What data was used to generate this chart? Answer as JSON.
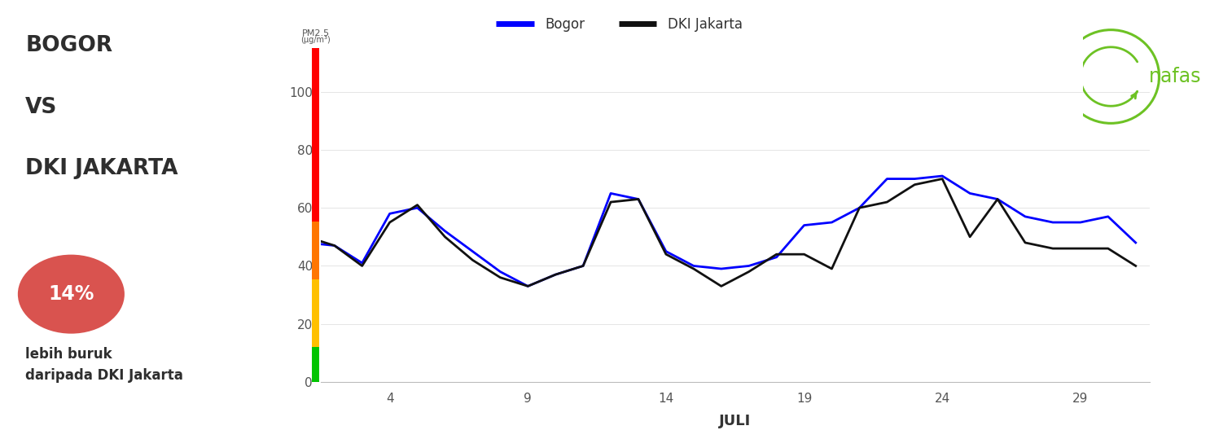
{
  "bogor_x": [
    1,
    2,
    3,
    4,
    5,
    6,
    7,
    8,
    9,
    10,
    11,
    12,
    13,
    14,
    15,
    16,
    17,
    18,
    19,
    20,
    21,
    22,
    23,
    24,
    25,
    26,
    27,
    28,
    29,
    30,
    31
  ],
  "bogor_y": [
    48,
    47,
    41,
    58,
    60,
    52,
    45,
    38,
    33,
    37,
    40,
    65,
    63,
    45,
    40,
    39,
    40,
    43,
    54,
    55,
    60,
    70,
    70,
    71,
    65,
    63,
    57,
    55,
    55,
    57,
    48
  ],
  "jakarta_x": [
    1,
    2,
    3,
    4,
    5,
    6,
    7,
    8,
    9,
    10,
    11,
    12,
    13,
    14,
    15,
    16,
    17,
    18,
    19,
    20,
    21,
    22,
    23,
    24,
    25,
    26,
    27,
    28,
    29,
    30,
    31
  ],
  "jakarta_y": [
    50,
    47,
    40,
    55,
    61,
    50,
    42,
    36,
    33,
    37,
    40,
    62,
    63,
    44,
    39,
    33,
    38,
    44,
    44,
    39,
    60,
    62,
    68,
    70,
    50,
    63,
    48,
    46,
    46,
    46,
    40
  ],
  "bogor_color": "#0000ff",
  "jakarta_color": "#111111",
  "ylim": [
    0,
    115
  ],
  "yticks": [
    0,
    20,
    40,
    60,
    80,
    100
  ],
  "xticks": [
    4,
    9,
    14,
    19,
    24,
    29
  ],
  "xlabel": "JULI",
  "ylabel_main": "PM2.5",
  "ylabel_sub": "(μg/m³)",
  "color_bar_colors": [
    "#00c400",
    "#ffc000",
    "#ff7600",
    "#ff0000"
  ],
  "color_bar_thresholds": [
    0,
    12,
    35.4,
    55.4,
    115
  ],
  "title_line1": "BOGOR",
  "title_line2": "VS",
  "title_line3": "DKI JAKARTA",
  "badge_text": "14%",
  "badge_color": "#d9534f",
  "badge_text_color": "#ffffff",
  "subtitle_text": "lebih buruk\ndaripada DKI Jakarta",
  "nafas_color": "#6dc224",
  "background_color": "#ffffff",
  "line_width": 2.0,
  "legend_bogor": "Bogor",
  "legend_jakarta": "DKI Jakarta"
}
